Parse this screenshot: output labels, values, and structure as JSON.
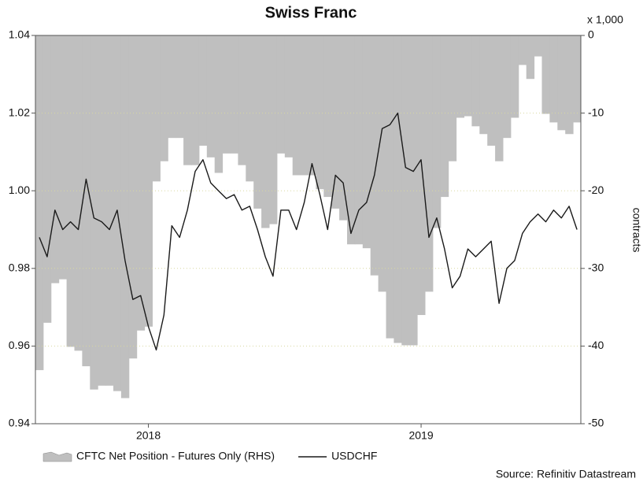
{
  "chart_data": {
    "type": "line",
    "title": "Swiss Franc",
    "y2_multiplier": "x 1,000",
    "y2_label": "contracts",
    "source": "Source: Refinitiv Datastream",
    "categories": [
      null,
      null,
      null,
      null,
      null,
      null,
      null,
      null,
      null,
      null,
      null,
      null,
      null,
      null,
      "2018",
      null,
      null,
      null,
      null,
      null,
      null,
      null,
      null,
      null,
      null,
      null,
      null,
      null,
      null,
      null,
      null,
      null,
      null,
      null,
      null,
      null,
      null,
      null,
      null,
      null,
      null,
      null,
      null,
      null,
      null,
      null,
      null,
      null,
      null,
      "2019",
      null,
      null,
      null,
      null,
      null,
      null,
      null,
      null,
      null,
      null,
      null,
      null,
      null,
      null,
      null,
      null,
      null,
      null,
      null,
      null
    ],
    "ylim": [
      0.94,
      1.04
    ],
    "yticks": [
      0.94,
      0.96,
      0.98,
      {
        "value": 1,
        "label": "1.00"
      },
      1.02,
      1.04
    ],
    "y2lim": [
      -50,
      0
    ],
    "y2ticks": [
      0,
      -10,
      -20,
      -30,
      -40,
      -50
    ],
    "grid": true,
    "series": [
      {
        "name": "CFTC Net Position - Futures Only (RHS)",
        "type": "area",
        "axis": "y2",
        "color": "#bfbfbf",
        "values": [
          -43.1,
          -37.0,
          -31.9,
          -31.4,
          -40.1,
          -40.6,
          -42.6,
          -45.6,
          -45.1,
          -45.1,
          -45.8,
          -46.7,
          -41.6,
          -38.0,
          -37.5,
          -18.8,
          -16.2,
          -13.2,
          -13.2,
          -16.7,
          -16.7,
          -14.2,
          -15.7,
          -17.7,
          -15.2,
          -15.2,
          -16.7,
          -18.8,
          -22.3,
          -24.8,
          -24.3,
          -15.2,
          -15.7,
          -18.0,
          -18.0,
          -18.0,
          -19.8,
          -20.8,
          -22.3,
          -23.8,
          -26.9,
          -26.9,
          -27.4,
          -30.9,
          -33.0,
          -39.0,
          -39.6,
          -39.9,
          -39.9,
          -36.0,
          -33.0,
          -24.8,
          -20.8,
          -16.2,
          -10.6,
          -10.4,
          -11.7,
          -12.7,
          -14.2,
          -16.2,
          -13.2,
          -10.6,
          -3.8,
          -5.6,
          -2.7,
          -10.1,
          -11.2,
          -12.2,
          -12.7,
          -11.2
        ]
      },
      {
        "name": "USDCHF",
        "type": "line",
        "color": "#1a1a1a",
        "values": [
          0.988,
          0.983,
          0.995,
          0.99,
          0.992,
          0.99,
          1.003,
          0.993,
          0.992,
          0.99,
          0.995,
          0.982,
          0.972,
          0.973,
          0.965,
          0.959,
          0.968,
          0.991,
          0.988,
          0.995,
          1.005,
          1.008,
          1.002,
          1.0,
          0.998,
          0.999,
          0.995,
          0.996,
          0.99,
          0.983,
          0.978,
          0.995,
          0.995,
          0.99,
          0.997,
          1.007,
          0.999,
          0.99,
          1.004,
          1.002,
          0.989,
          0.995,
          0.997,
          1.004,
          1.016,
          1.017,
          1.02,
          1.006,
          1.005,
          1.008,
          0.988,
          0.993,
          0.985,
          0.975,
          0.978,
          0.985,
          0.983,
          0.985,
          0.987,
          0.971,
          0.98,
          0.982,
          0.989,
          0.992,
          0.994,
          0.992,
          0.995,
          0.993,
          0.996,
          0.99
        ]
      }
    ]
  }
}
